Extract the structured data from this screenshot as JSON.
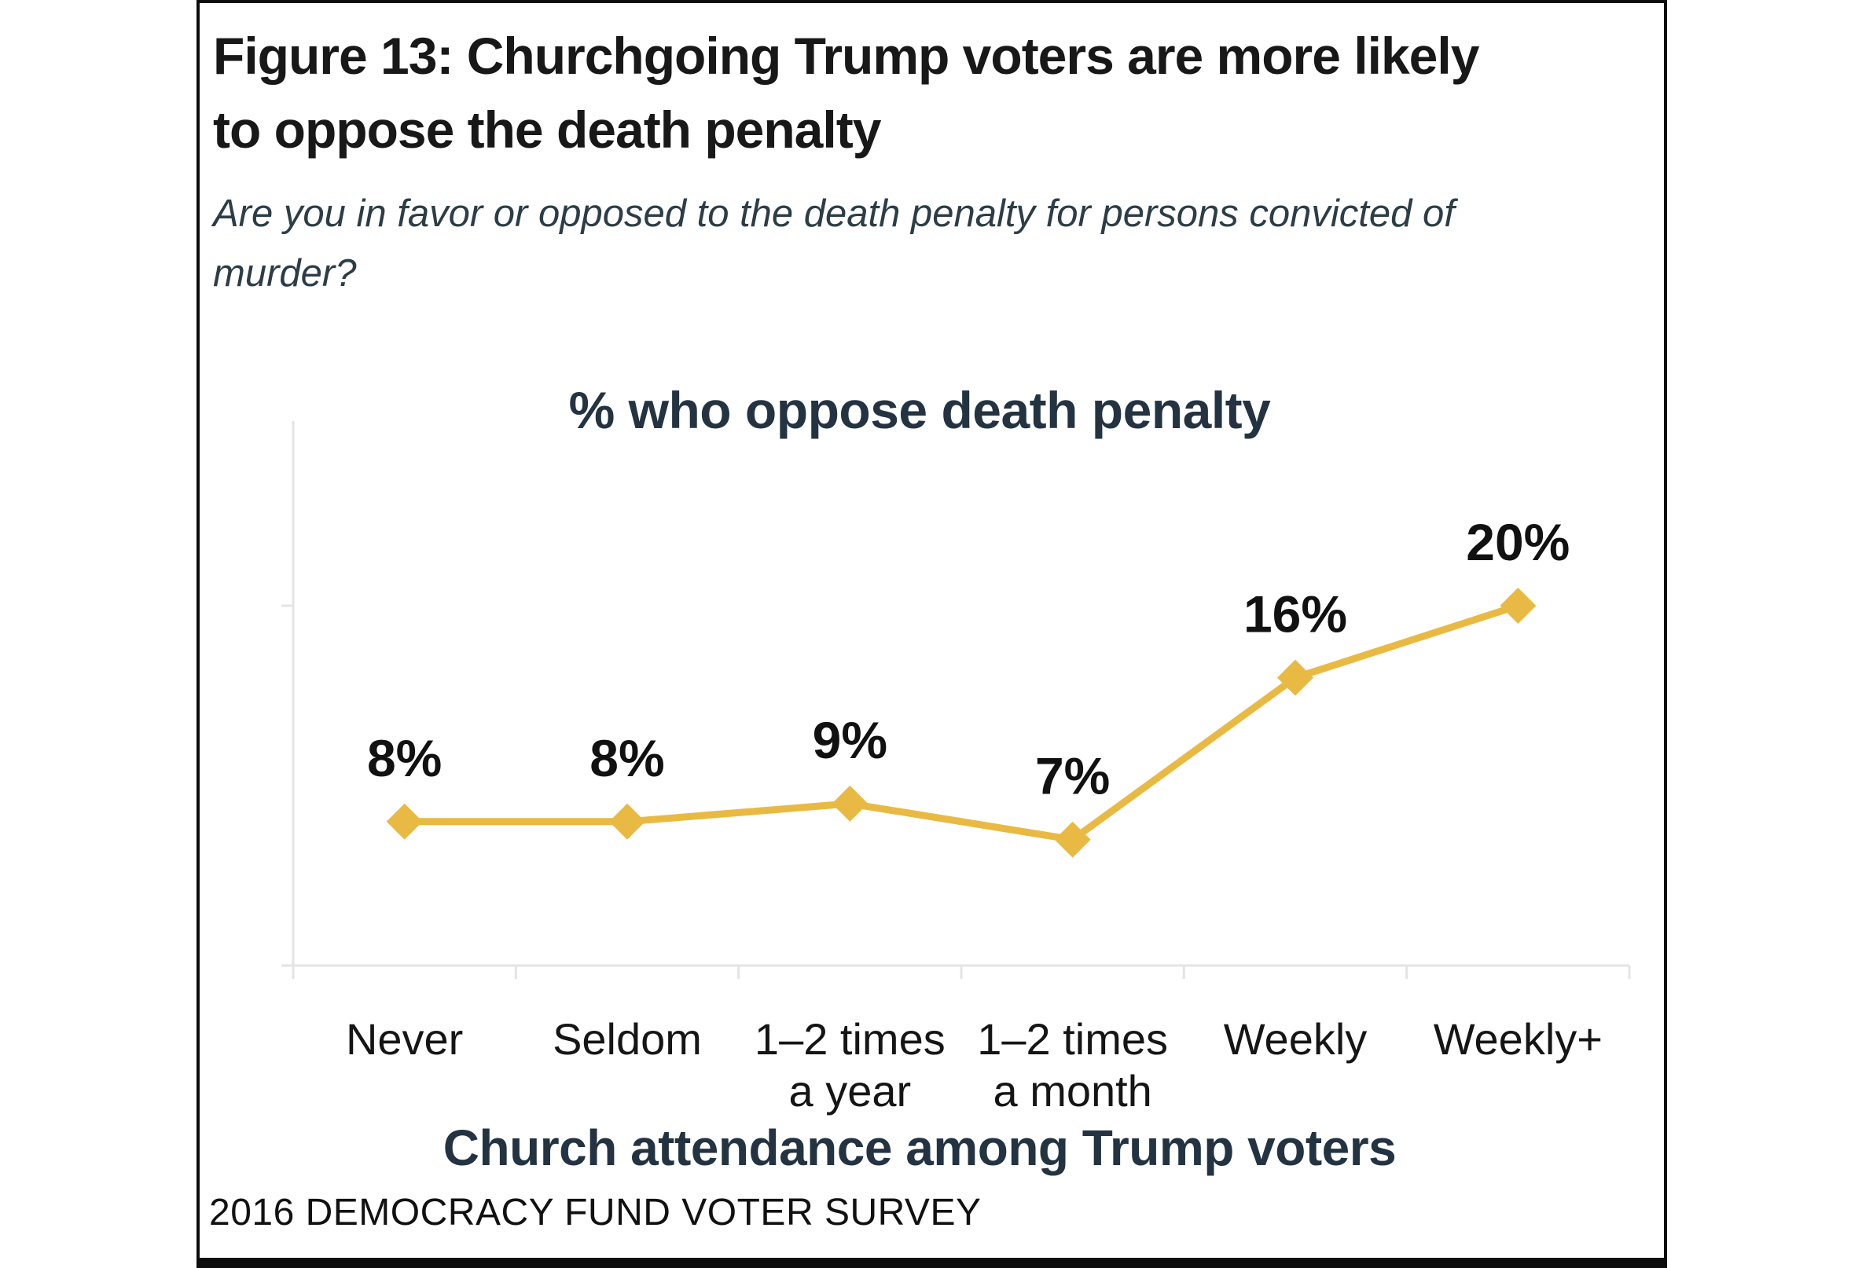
{
  "figure": {
    "title": "Figure 13: Churchgoing Trump voters are more likely to oppose the death penalty",
    "title_lines": [
      "Figure 13: Churchgoing Trump voters are more likely",
      "to oppose the death penalty"
    ],
    "subtitle": "Are you in favor or opposed to the death penalty for persons convicted of murder?",
    "subtitle_lines": [
      "Are you in favor or opposed to the death penalty for persons convicted of",
      "murder?"
    ],
    "source": "2016 DEMOCRACY FUND VOTER SURVEY"
  },
  "chart_data": {
    "type": "line",
    "title": "% who oppose death penalty",
    "xlabel": "Church attendance among Trump voters",
    "ylabel": "",
    "categories": [
      "Never",
      "Seldom",
      "1–2 times\na year",
      "1–2 times\na month",
      "Weekly",
      "Weekly+"
    ],
    "values": [
      8,
      8,
      9,
      7,
      16,
      20
    ],
    "data_labels": [
      "8%",
      "8%",
      "9%",
      "7%",
      "16%",
      "20%"
    ],
    "ylim": [
      0,
      30
    ],
    "y_ticks_shown_pct": [
      0,
      20
    ],
    "grid": false,
    "legend": false,
    "marker": "diamond",
    "colors": {
      "line": "#E9BA43",
      "marker": "#E9BA43",
      "axis": "#E4E4E4",
      "data_label": "#111111",
      "tick_label": "#151515",
      "heading": "#233341"
    }
  }
}
